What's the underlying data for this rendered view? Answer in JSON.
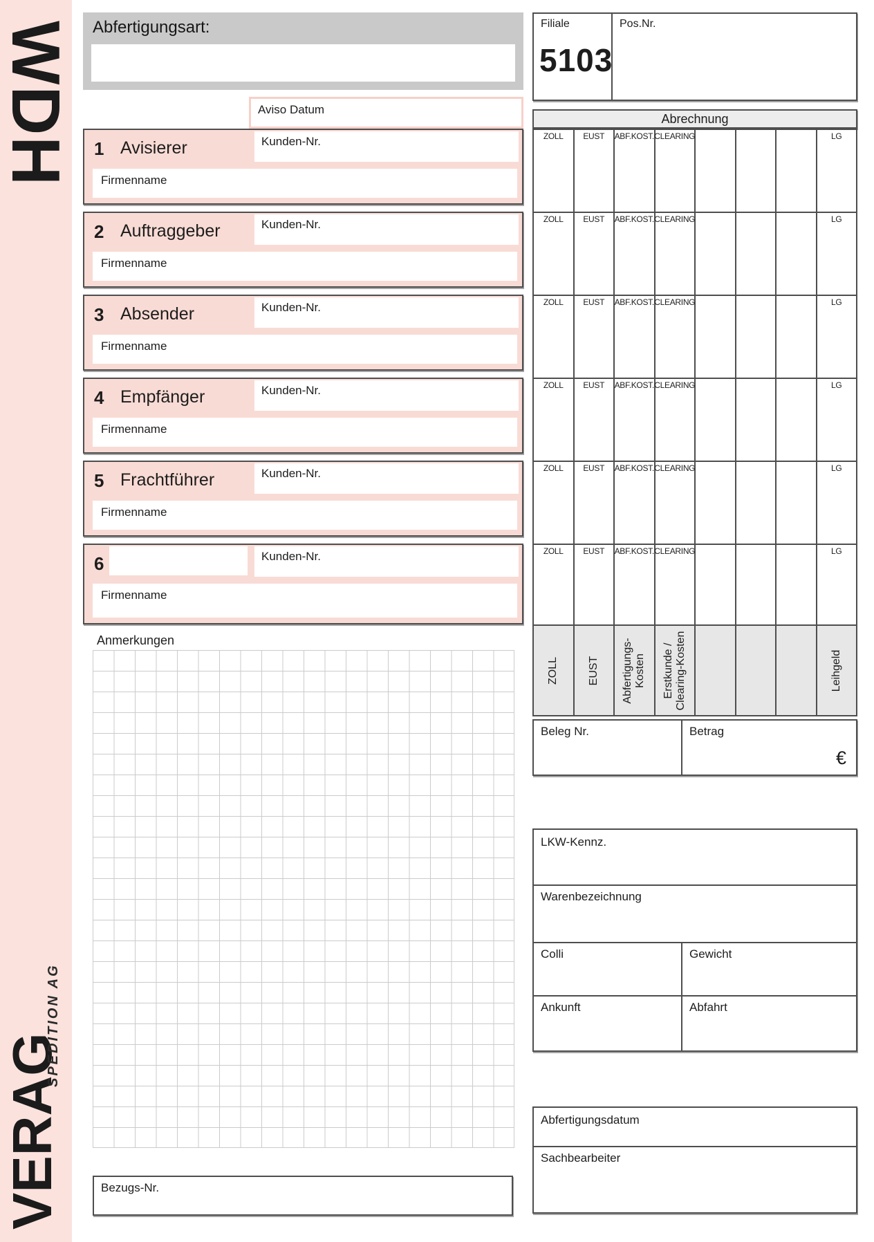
{
  "sidebar": {
    "brand_top": "WDH",
    "brand_bottom": "VERAG",
    "brand_sub": "SPEDITION AG"
  },
  "header": {
    "abfertigungsart_label": "Abfertigungsart:",
    "filiale_label": "Filiale",
    "filiale_value": "5103",
    "pos_nr_label": "Pos.Nr.",
    "aviso_datum_label": "Aviso Datum"
  },
  "sections": {
    "kunden_nr_label": "Kunden-Nr.",
    "firmenname_label": "Firmenname",
    "items": [
      {
        "num": "1",
        "label": "Avisierer"
      },
      {
        "num": "2",
        "label": "Auftraggeber"
      },
      {
        "num": "3",
        "label": "Absender"
      },
      {
        "num": "4",
        "label": "Empfänger"
      },
      {
        "num": "5",
        "label": "Frachtführer"
      },
      {
        "num": "6",
        "label": ""
      }
    ]
  },
  "abrechnung": {
    "title": "Abrechnung",
    "columns": [
      "ZOLL",
      "EUST",
      "ABF.KOST.",
      "CLEARING",
      "",
      "",
      "",
      "LG"
    ],
    "row_count": 6,
    "rotated_labels": [
      "ZOLL",
      "EUST",
      "Abfertigungs-Kosten",
      "Erstkunde / Clearing-Kosten",
      "",
      "",
      "",
      "Leihgeld"
    ],
    "beleg_nr_label": "Beleg Nr.",
    "betrag_label": "Betrag",
    "currency_symbol": "€"
  },
  "anmerkungen": {
    "label": "Anmerkungen",
    "grid_cols": 20,
    "grid_rows": 24
  },
  "shipment": {
    "lkw_label": "LKW-Kennz.",
    "waren_label": "Warenbezeichnung",
    "colli_label": "Colli",
    "gewicht_label": "Gewicht",
    "ankunft_label": "Ankunft",
    "abfahrt_label": "Abfahrt"
  },
  "processing": {
    "abfertigungsdatum_label": "Abfertigungsdatum",
    "sachbearbeiter_label": "Sachbearbeiter"
  },
  "reference": {
    "bezugs_nr_label": "Bezugs-Nr."
  },
  "colors": {
    "pink_bg": "#fbe2dd",
    "pink_section": "#f9dbd5",
    "gray_fill": "#c9c9c9",
    "header_fill": "#ededed",
    "rotated_fill": "#e7e7e7",
    "border": "#4e4e4e",
    "grid_line": "#cbcbcb",
    "ink": "#1d1d1d"
  }
}
